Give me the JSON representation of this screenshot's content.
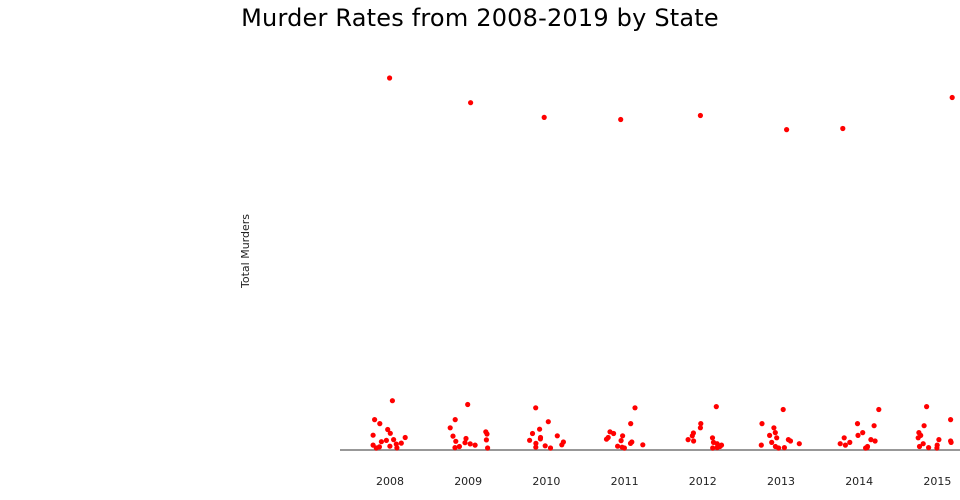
{
  "chart_data": {
    "type": "scatter",
    "title": "Murder Rates from 2008-2019 by State",
    "ylabel": "Total Murders",
    "xlabel": "",
    "x_ticks": [
      "2008",
      "2009",
      "2010",
      "2011",
      "2012",
      "2013",
      "2014",
      "2015"
    ],
    "ylim": [
      0,
      2200
    ],
    "grid": false,
    "marker_color": "#ff0000",
    "series": [
      {
        "points": [
          {
            "x": 2008,
            "y": 2142
          },
          {
            "x": 2008,
            "y": 284
          },
          {
            "x": 2008,
            "y": 175
          },
          {
            "x": 2008,
            "y": 152
          },
          {
            "x": 2008,
            "y": 118
          },
          {
            "x": 2008,
            "y": 96
          },
          {
            "x": 2008,
            "y": 85
          },
          {
            "x": 2008,
            "y": 72
          },
          {
            "x": 2008,
            "y": 60
          },
          {
            "x": 2008,
            "y": 55
          },
          {
            "x": 2008,
            "y": 48
          },
          {
            "x": 2008,
            "y": 40
          },
          {
            "x": 2008,
            "y": 34
          },
          {
            "x": 2008,
            "y": 28
          },
          {
            "x": 2008,
            "y": 22
          },
          {
            "x": 2008,
            "y": 18
          },
          {
            "x": 2008,
            "y": 12
          },
          {
            "x": 2008,
            "y": 8
          },
          {
            "x": 2009,
            "y": 2000
          },
          {
            "x": 2009,
            "y": 262
          },
          {
            "x": 2009,
            "y": 175
          },
          {
            "x": 2009,
            "y": 128
          },
          {
            "x": 2009,
            "y": 105
          },
          {
            "x": 2009,
            "y": 92
          },
          {
            "x": 2009,
            "y": 80
          },
          {
            "x": 2009,
            "y": 66
          },
          {
            "x": 2009,
            "y": 58
          },
          {
            "x": 2009,
            "y": 50
          },
          {
            "x": 2009,
            "y": 42
          },
          {
            "x": 2009,
            "y": 35
          },
          {
            "x": 2009,
            "y": 28
          },
          {
            "x": 2009,
            "y": 20
          },
          {
            "x": 2009,
            "y": 14
          },
          {
            "x": 2009,
            "y": 8
          },
          {
            "x": 2010,
            "y": 1915
          },
          {
            "x": 2010,
            "y": 243
          },
          {
            "x": 2010,
            "y": 163
          },
          {
            "x": 2010,
            "y": 120
          },
          {
            "x": 2010,
            "y": 95
          },
          {
            "x": 2010,
            "y": 82
          },
          {
            "x": 2010,
            "y": 72
          },
          {
            "x": 2010,
            "y": 64
          },
          {
            "x": 2010,
            "y": 56
          },
          {
            "x": 2010,
            "y": 46
          },
          {
            "x": 2010,
            "y": 38
          },
          {
            "x": 2010,
            "y": 30
          },
          {
            "x": 2010,
            "y": 24
          },
          {
            "x": 2010,
            "y": 16
          },
          {
            "x": 2010,
            "y": 10
          },
          {
            "x": 2011,
            "y": 1903
          },
          {
            "x": 2011,
            "y": 243
          },
          {
            "x": 2011,
            "y": 152
          },
          {
            "x": 2011,
            "y": 105
          },
          {
            "x": 2011,
            "y": 95
          },
          {
            "x": 2011,
            "y": 82
          },
          {
            "x": 2011,
            "y": 72
          },
          {
            "x": 2011,
            "y": 62
          },
          {
            "x": 2011,
            "y": 54
          },
          {
            "x": 2011,
            "y": 46
          },
          {
            "x": 2011,
            "y": 38
          },
          {
            "x": 2011,
            "y": 30
          },
          {
            "x": 2011,
            "y": 22
          },
          {
            "x": 2011,
            "y": 16
          },
          {
            "x": 2011,
            "y": 10
          },
          {
            "x": 2012,
            "y": 1926
          },
          {
            "x": 2012,
            "y": 250
          },
          {
            "x": 2012,
            "y": 152
          },
          {
            "x": 2012,
            "y": 128
          },
          {
            "x": 2012,
            "y": 98
          },
          {
            "x": 2012,
            "y": 82
          },
          {
            "x": 2012,
            "y": 70
          },
          {
            "x": 2012,
            "y": 60
          },
          {
            "x": 2012,
            "y": 52
          },
          {
            "x": 2012,
            "y": 44
          },
          {
            "x": 2012,
            "y": 36
          },
          {
            "x": 2012,
            "y": 28
          },
          {
            "x": 2012,
            "y": 20
          },
          {
            "x": 2012,
            "y": 14
          },
          {
            "x": 2012,
            "y": 8
          },
          {
            "x": 2013,
            "y": 1845
          },
          {
            "x": 2013,
            "y": 233
          },
          {
            "x": 2013,
            "y": 152
          },
          {
            "x": 2013,
            "y": 128
          },
          {
            "x": 2013,
            "y": 100
          },
          {
            "x": 2013,
            "y": 84
          },
          {
            "x": 2013,
            "y": 70
          },
          {
            "x": 2013,
            "y": 60
          },
          {
            "x": 2013,
            "y": 52
          },
          {
            "x": 2013,
            "y": 44
          },
          {
            "x": 2013,
            "y": 36
          },
          {
            "x": 2013,
            "y": 28
          },
          {
            "x": 2013,
            "y": 20
          },
          {
            "x": 2013,
            "y": 14
          },
          {
            "x": 2013,
            "y": 8
          },
          {
            "x": 2014,
            "y": 1851
          },
          {
            "x": 2014,
            "y": 233
          },
          {
            "x": 2014,
            "y": 152
          },
          {
            "x": 2014,
            "y": 140
          },
          {
            "x": 2014,
            "y": 100
          },
          {
            "x": 2014,
            "y": 84
          },
          {
            "x": 2014,
            "y": 70
          },
          {
            "x": 2014,
            "y": 60
          },
          {
            "x": 2014,
            "y": 52
          },
          {
            "x": 2014,
            "y": 44
          },
          {
            "x": 2014,
            "y": 36
          },
          {
            "x": 2014,
            "y": 28
          },
          {
            "x": 2014,
            "y": 20
          },
          {
            "x": 2014,
            "y": 14
          },
          {
            "x": 2014,
            "y": 8
          },
          {
            "x": 2015,
            "y": 2030
          },
          {
            "x": 2015,
            "y": 250
          },
          {
            "x": 2015,
            "y": 175
          },
          {
            "x": 2015,
            "y": 140
          },
          {
            "x": 2015,
            "y": 100
          },
          {
            "x": 2015,
            "y": 84
          },
          {
            "x": 2015,
            "y": 70
          },
          {
            "x": 2015,
            "y": 60
          },
          {
            "x": 2015,
            "y": 52
          },
          {
            "x": 2015,
            "y": 44
          },
          {
            "x": 2015,
            "y": 36
          },
          {
            "x": 2015,
            "y": 28
          },
          {
            "x": 2015,
            "y": 20
          },
          {
            "x": 2015,
            "y": 14
          },
          {
            "x": 2015,
            "y": 8
          }
        ]
      }
    ]
  }
}
